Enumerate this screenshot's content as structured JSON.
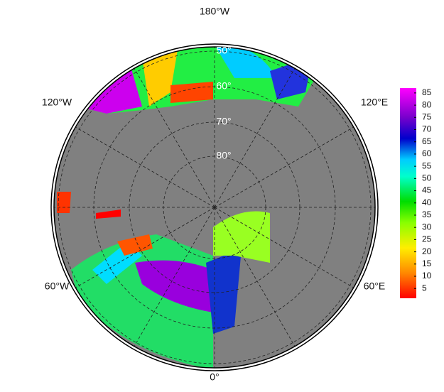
{
  "map": {
    "longitude_labels": [
      "180°W",
      "120°W",
      "120°E",
      "60°W",
      "60°E",
      "0°"
    ],
    "latitude_labels": [
      "50°",
      "60°",
      "70°",
      "80°"
    ],
    "colorbar": {
      "lim": [
        1,
        87
      ],
      "ticks": [
        5,
        10,
        15,
        20,
        25,
        30,
        35,
        40,
        45,
        50,
        55,
        60,
        65,
        70,
        75,
        80,
        85
      ]
    }
  }
}
